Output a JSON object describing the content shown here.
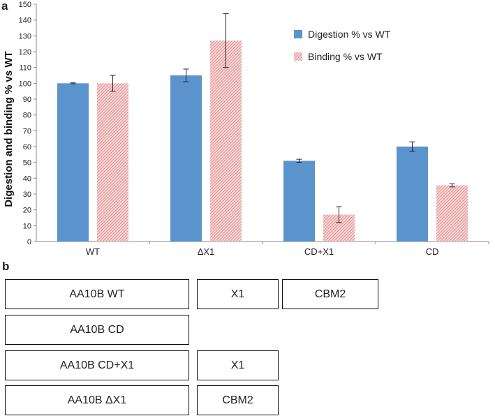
{
  "panel_a": "a",
  "panel_b": "b",
  "chart_data": {
    "type": "bar",
    "title": "",
    "xlabel": "",
    "ylabel": "Digestion and binding % vs WT",
    "ylim": [
      0,
      150
    ],
    "ytick_step": 10,
    "categories": [
      "WT",
      "ΔX1",
      "CD+X1",
      "CD"
    ],
    "series": [
      {
        "name": "Digestion % vs WT",
        "color": "#5b93cc",
        "pattern": "solid",
        "values": [
          100,
          105,
          51,
          60
        ],
        "errors": [
          0.3,
          4,
          1,
          3
        ]
      },
      {
        "name": "Binding % vs WT",
        "color": "#e8a1a1",
        "pattern": "hatched",
        "values": [
          100,
          127,
          17,
          35.5
        ],
        "errors": [
          5,
          17,
          5,
          1
        ]
      }
    ],
    "legend_position": "top-right"
  },
  "domains": {
    "rows": [
      {
        "construct": "AA10B WT",
        "parts": [
          "X1",
          "CBM2"
        ]
      },
      {
        "construct": "AA10B CD",
        "parts": []
      },
      {
        "construct": "AA10B CD+X1",
        "parts": [
          "X1"
        ]
      },
      {
        "construct": "AA10B ΔX1",
        "parts": [
          "CBM2"
        ]
      }
    ]
  }
}
